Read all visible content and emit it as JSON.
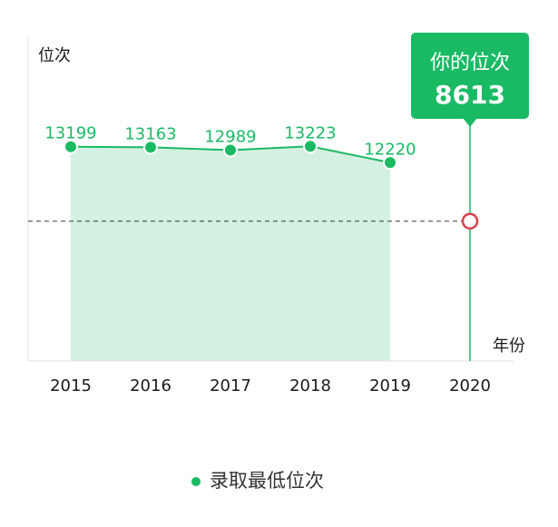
{
  "chart_data": {
    "type": "area",
    "ylabel": "位次",
    "xlabel": "年份",
    "categories": [
      "2015",
      "2016",
      "2017",
      "2018",
      "2019",
      "2020"
    ],
    "series": [
      {
        "name": "录取最低位次",
        "x": [
          "2015",
          "2016",
          "2017",
          "2018",
          "2019"
        ],
        "values": [
          13199,
          13163,
          12989,
          13223,
          12220
        ],
        "color": "#1aba64",
        "fill": "#d3f1e0"
      }
    ],
    "your_rank": {
      "label": "你的位次",
      "value": 8613,
      "x": "2020",
      "color": "#1aba64",
      "marker_color": "#d9414a"
    },
    "ylim": [
      0,
      20000
    ],
    "grid": false,
    "legend_position": "bottom-center"
  }
}
